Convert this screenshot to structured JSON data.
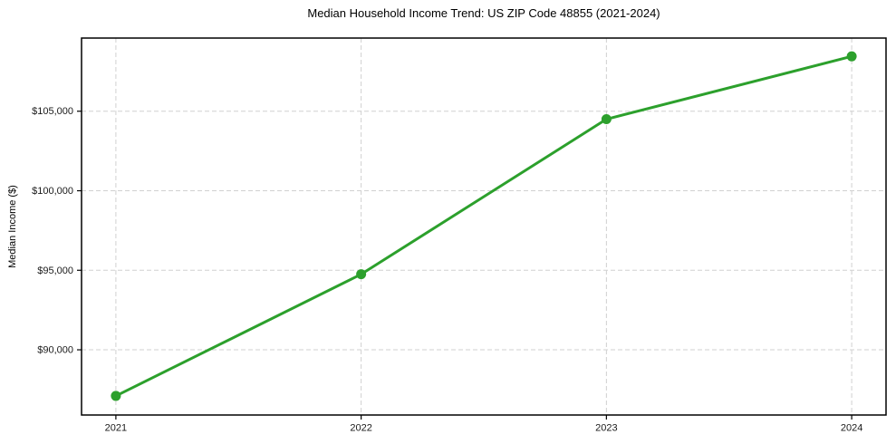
{
  "chart_data": {
    "type": "line",
    "title": "Median Household Income Trend: US ZIP Code 48855 (2021-2024)",
    "xlabel": "",
    "ylabel": "Median Income ($)",
    "x": [
      2021,
      2022,
      2023,
      2024
    ],
    "categories": [
      "2021",
      "2022",
      "2023",
      "2024"
    ],
    "series": [
      {
        "name": "Median Household Income",
        "values": [
          87100,
          94750,
          104500,
          108450
        ]
      }
    ],
    "xticks": [
      {
        "value": 2021,
        "label": "2021"
      },
      {
        "value": 2022,
        "label": "2022"
      },
      {
        "value": 2023,
        "label": "2023"
      },
      {
        "value": 2024,
        "label": "2024"
      }
    ],
    "yticks": [
      {
        "value": 90000,
        "label": "$90,000"
      },
      {
        "value": 95000,
        "label": "$95,000"
      },
      {
        "value": 100000,
        "label": "$100,000"
      },
      {
        "value": 105000,
        "label": "$105,000"
      }
    ],
    "xlim": [
      2020.86,
      2024.14
    ],
    "ylim": [
      85900,
      109600
    ],
    "grid": true,
    "grid_style": "dashed",
    "legend": "none",
    "colors": {
      "line": "#2ca02c",
      "marker": "#2ca02c",
      "grid": "#d0d0d0",
      "spine": "#000000",
      "tick_label": "#1a1a1a",
      "background": "#ffffff"
    }
  }
}
